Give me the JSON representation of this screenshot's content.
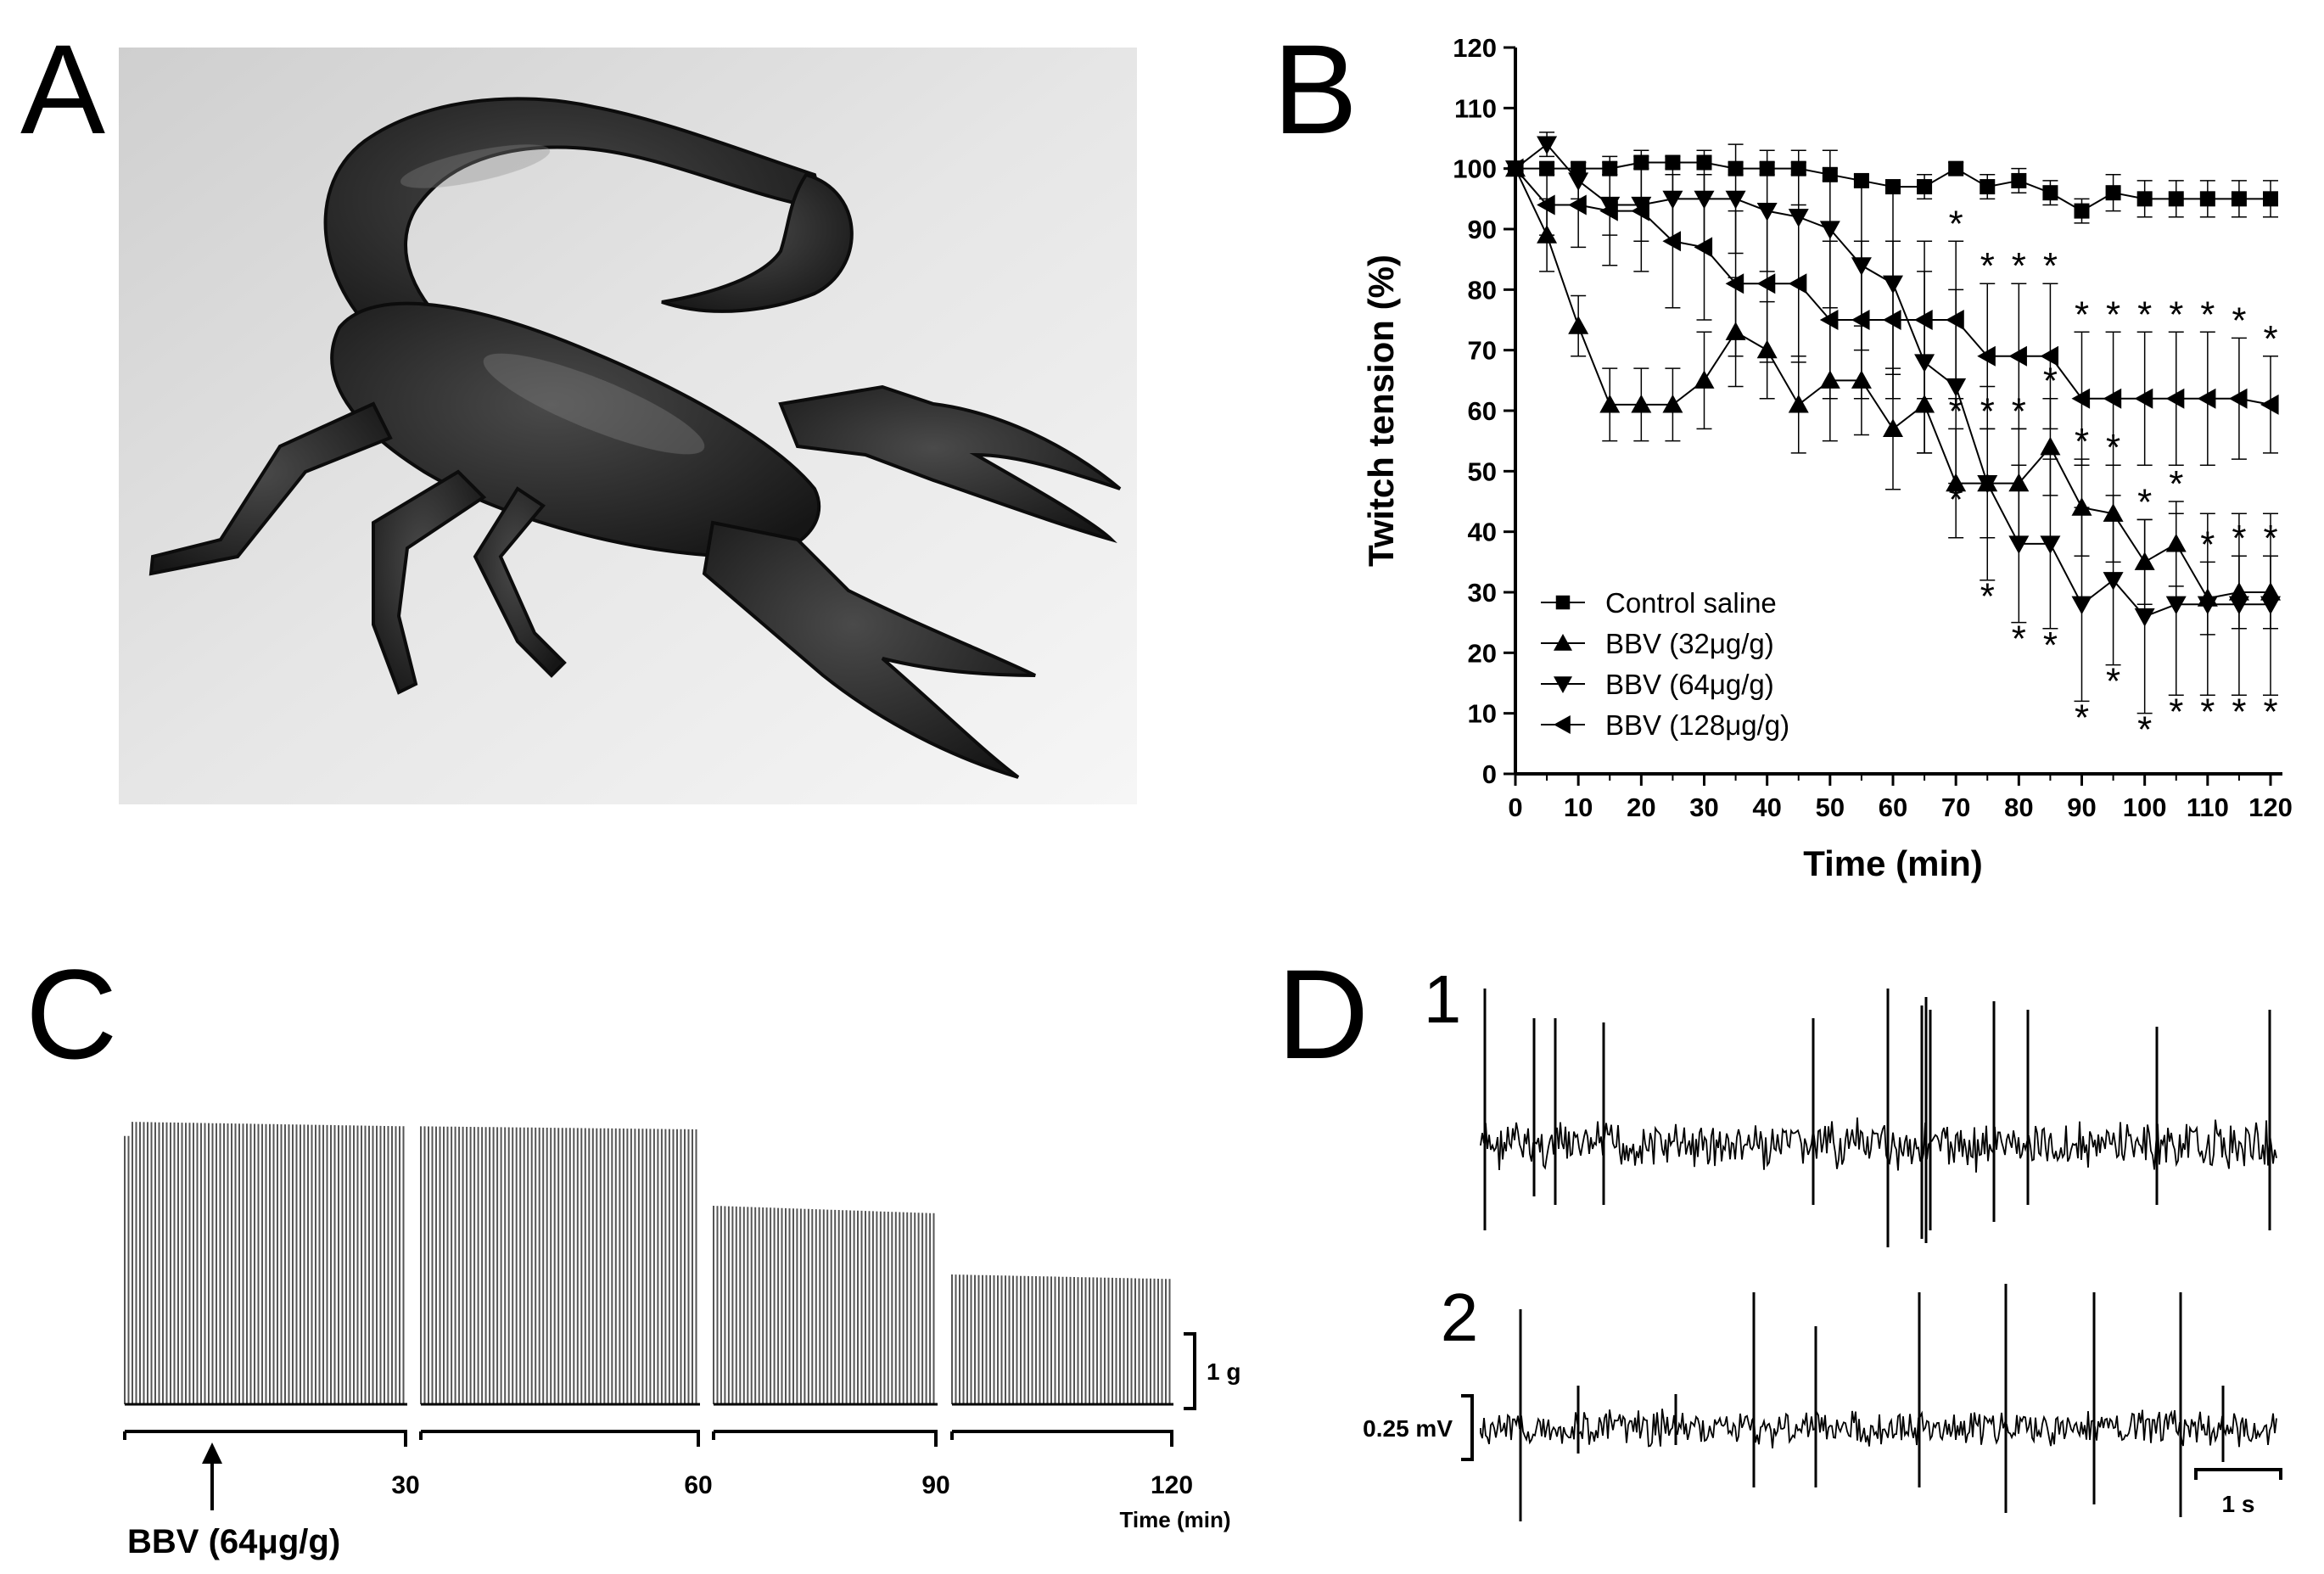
{
  "panels": {
    "a": "A",
    "b": "B",
    "c": "C",
    "d": "D"
  },
  "chart_data": [
    {
      "panel": "B",
      "type": "line",
      "xlabel": "Time (min)",
      "ylabel": "Twitch tension (%)",
      "xlim": [
        0,
        120
      ],
      "ylim": [
        0,
        120
      ],
      "xticks": [
        0,
        10,
        20,
        30,
        40,
        50,
        60,
        70,
        80,
        90,
        100,
        110,
        120
      ],
      "yticks": [
        0,
        10,
        20,
        30,
        40,
        50,
        60,
        70,
        80,
        90,
        100,
        110,
        120
      ],
      "grid": false,
      "legend_position": "bottom-left",
      "x": [
        0,
        5,
        10,
        15,
        20,
        25,
        30,
        35,
        40,
        45,
        50,
        55,
        60,
        65,
        70,
        75,
        80,
        85,
        90,
        95,
        100,
        105,
        110,
        115,
        120
      ],
      "series": [
        {
          "name": "Control saline",
          "marker": "square",
          "values": [
            100,
            100,
            100,
            100,
            101,
            101,
            101,
            100,
            100,
            100,
            99,
            98,
            97,
            97,
            100,
            97,
            98,
            96,
            93,
            96,
            95,
            95,
            95,
            95,
            95
          ],
          "err": [
            0,
            1,
            1,
            1,
            1,
            1,
            1,
            1,
            1,
            1,
            1,
            1,
            1,
            2,
            1,
            2,
            2,
            2,
            2,
            3,
            3,
            3,
            3,
            3,
            3
          ],
          "significant": []
        },
        {
          "name": "BBV (32μg/g)",
          "marker": "triangle-up",
          "values": [
            100,
            89,
            74,
            61,
            61,
            61,
            65,
            73,
            70,
            61,
            65,
            65,
            57,
            61,
            48,
            48,
            48,
            54,
            44,
            43,
            35,
            38,
            29,
            30,
            30
          ],
          "err": [
            0,
            6,
            5,
            6,
            6,
            6,
            8,
            9,
            8,
            8,
            10,
            9,
            10,
            8,
            9,
            9,
            9,
            8,
            8,
            8,
            7,
            7,
            6,
            6,
            6
          ],
          "significant": [
            70,
            75,
            80,
            85,
            90,
            95,
            100,
            105,
            110,
            115,
            120
          ]
        },
        {
          "name": "BBV (64μg/g)",
          "marker": "triangle-down",
          "values": [
            100,
            104,
            98,
            94,
            94,
            95,
            95,
            95,
            93,
            92,
            90,
            84,
            81,
            68,
            64,
            48,
            38,
            38,
            28,
            32,
            26,
            28,
            28,
            28,
            28
          ],
          "err": [
            0,
            2,
            3,
            5,
            6,
            7,
            8,
            9,
            10,
            11,
            13,
            14,
            15,
            15,
            16,
            16,
            13,
            14,
            16,
            14,
            16,
            15,
            15,
            15,
            15
          ],
          "significant": [
            70,
            75,
            80,
            85,
            90,
            95,
            100,
            105,
            110,
            115,
            120
          ]
        },
        {
          "name": "BBV (128μg/g)",
          "marker": "triangle-left",
          "values": [
            100,
            94,
            94,
            93,
            93,
            88,
            87,
            81,
            81,
            81,
            75,
            75,
            75,
            75,
            75,
            69,
            69,
            69,
            62,
            62,
            62,
            62,
            62,
            62,
            61
          ],
          "err": [
            0,
            5,
            7,
            9,
            10,
            11,
            12,
            12,
            13,
            13,
            13,
            13,
            13,
            13,
            13,
            12,
            12,
            12,
            11,
            11,
            11,
            11,
            11,
            10,
            8
          ],
          "significant": [
            70,
            75,
            80,
            85,
            90,
            95,
            100,
            105,
            110,
            115,
            120
          ]
        }
      ]
    },
    {
      "panel": "C",
      "type": "line",
      "xlabel": "Time (min)",
      "xlim": [
        0,
        120
      ],
      "xticks": [
        30,
        60,
        90,
        120
      ],
      "segments": [
        {
          "start": 0,
          "end": 30,
          "amplitude_g": [
            1.85,
            1.82
          ]
        },
        {
          "start": 30,
          "end": 60,
          "amplitude_g": [
            1.82,
            1.8
          ]
        },
        {
          "start": 60,
          "end": 90,
          "amplitude_g": [
            1.3,
            1.25
          ]
        },
        {
          "start": 90,
          "end": 120,
          "amplitude_g": [
            0.85,
            0.82
          ]
        }
      ],
      "scale_bar": "1 g",
      "annotation": "BBV (64μg/g)"
    },
    {
      "panel": "D",
      "type": "line",
      "traces": [
        {
          "label": "1"
        },
        {
          "label": "2"
        }
      ],
      "scale_bar_voltage": "0.25 mV",
      "scale_bar_time": "1 s"
    }
  ]
}
